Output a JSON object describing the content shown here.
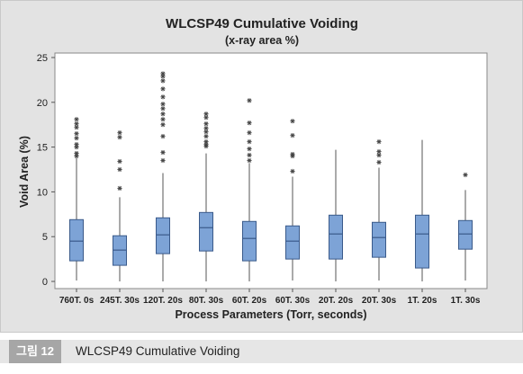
{
  "chart_data": {
    "type": "box",
    "title": "WLCSP49 Cumulative Voiding",
    "subtitle": "(x-ray area %)",
    "xlabel": "Process Parameters (Torr, seconds)",
    "ylabel": "Void Area (%)",
    "ylim": [
      -0.8,
      25.5
    ],
    "yticks": [
      0,
      5,
      10,
      15,
      20,
      25
    ],
    "grid": false,
    "colors": {
      "box": "#7da3d6",
      "box_edge": "#3a5a8a",
      "outlier": "#444444",
      "plot_bg": "#ffffff",
      "frame_bg": "#e3e3e3"
    },
    "categories": [
      "760T. 0s",
      "245T. 30s",
      "120T. 20s",
      "80T. 30s",
      "60T. 20s",
      "60T. 30s",
      "20T. 20s",
      "20T. 30s",
      "1T. 20s",
      "1T. 30s"
    ],
    "boxes": [
      {
        "min": 0.1,
        "q1": 2.3,
        "median": 4.5,
        "q3": 6.9,
        "max": 13.9,
        "outliers": [
          14.0,
          14.3,
          15.0,
          15.3,
          16.0,
          16.5,
          17.2,
          17.6,
          18.1
        ]
      },
      {
        "min": 0.0,
        "q1": 1.8,
        "median": 3.5,
        "q3": 5.1,
        "max": 9.4,
        "outliers": [
          10.4,
          12.5,
          13.4,
          16.1,
          16.6
        ]
      },
      {
        "min": 0.0,
        "q1": 3.1,
        "median": 5.2,
        "q3": 7.1,
        "max": 12.1,
        "outliers": [
          13.5,
          14.4,
          16.2,
          17.5,
          18.1,
          18.7,
          19.3,
          19.8,
          20.6,
          21.5,
          22.4,
          22.9,
          23.2
        ]
      },
      {
        "min": 0.0,
        "q1": 3.4,
        "median": 6.0,
        "q3": 7.7,
        "max": 14.3,
        "outliers": [
          15.1,
          15.3,
          15.6,
          16.2,
          16.7,
          17.1,
          17.6,
          18.3,
          18.7
        ]
      },
      {
        "min": 0.0,
        "q1": 2.3,
        "median": 4.8,
        "q3": 6.7,
        "max": 13.2,
        "outliers": [
          13.5,
          14.1,
          14.8,
          15.6,
          16.6,
          17.7,
          20.2
        ]
      },
      {
        "min": 0.1,
        "q1": 2.5,
        "median": 4.5,
        "q3": 6.2,
        "max": 11.7,
        "outliers": [
          12.3,
          14.0,
          14.2,
          16.3,
          17.9
        ]
      },
      {
        "min": 0.0,
        "q1": 2.5,
        "median": 5.3,
        "q3": 7.4,
        "max": 14.7,
        "outliers": []
      },
      {
        "min": 0.1,
        "q1": 2.7,
        "median": 4.9,
        "q3": 6.6,
        "max": 12.7,
        "outliers": [
          13.3,
          14.1,
          14.5,
          15.6
        ]
      },
      {
        "min": 0.0,
        "q1": 1.5,
        "median": 5.3,
        "q3": 7.4,
        "max": 15.8,
        "outliers": []
      },
      {
        "min": 0.1,
        "q1": 3.6,
        "median": 5.3,
        "q3": 6.8,
        "max": 10.2,
        "outliers": [
          11.9
        ]
      }
    ]
  },
  "caption": {
    "figure_label": "그림 12",
    "text": "WLCSP49 Cumulative Voiding"
  }
}
